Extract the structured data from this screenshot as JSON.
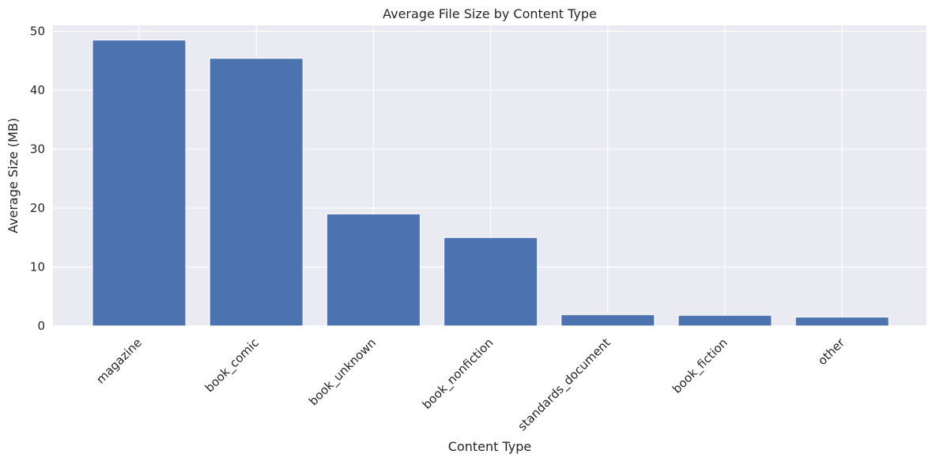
{
  "chart_data": {
    "type": "bar",
    "title": "Average File Size by Content Type",
    "xlabel": "Content Type",
    "ylabel": "Average Size (MB)",
    "categories": [
      "magazine",
      "book_comic",
      "book_unknown",
      "book_nonfiction",
      "standards_document",
      "book_fiction",
      "other"
    ],
    "values": [
      48.5,
      45.4,
      19.0,
      15.0,
      1.9,
      1.8,
      1.5
    ],
    "ylim": [
      0,
      51
    ],
    "yticks": [
      0,
      10,
      20,
      30,
      40,
      50
    ],
    "grid": true,
    "bar_color": "#4c72b0",
    "background_color": "#eaeaf2"
  }
}
